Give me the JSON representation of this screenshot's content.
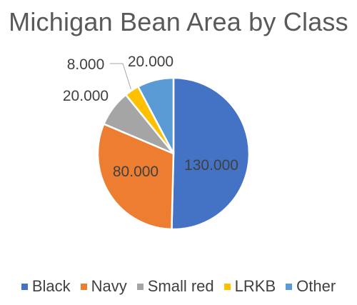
{
  "chart_data": {
    "type": "pie",
    "title": "Michigan Bean Area by Class",
    "categories": [
      "Black",
      "Navy",
      "Small red",
      "LRKB",
      "Other"
    ],
    "values": [
      130000,
      80000,
      20000,
      8000,
      20000
    ],
    "data_labels": [
      "130.000",
      "80.000",
      "20.000",
      "8.000",
      "20.000"
    ],
    "colors": [
      "#4472C4",
      "#ED7D31",
      "#A5A5A5",
      "#FFC000",
      "#5B9BD5"
    ],
    "legend_position": "bottom",
    "start_angle_deg": 0,
    "direction": "clockwise"
  }
}
